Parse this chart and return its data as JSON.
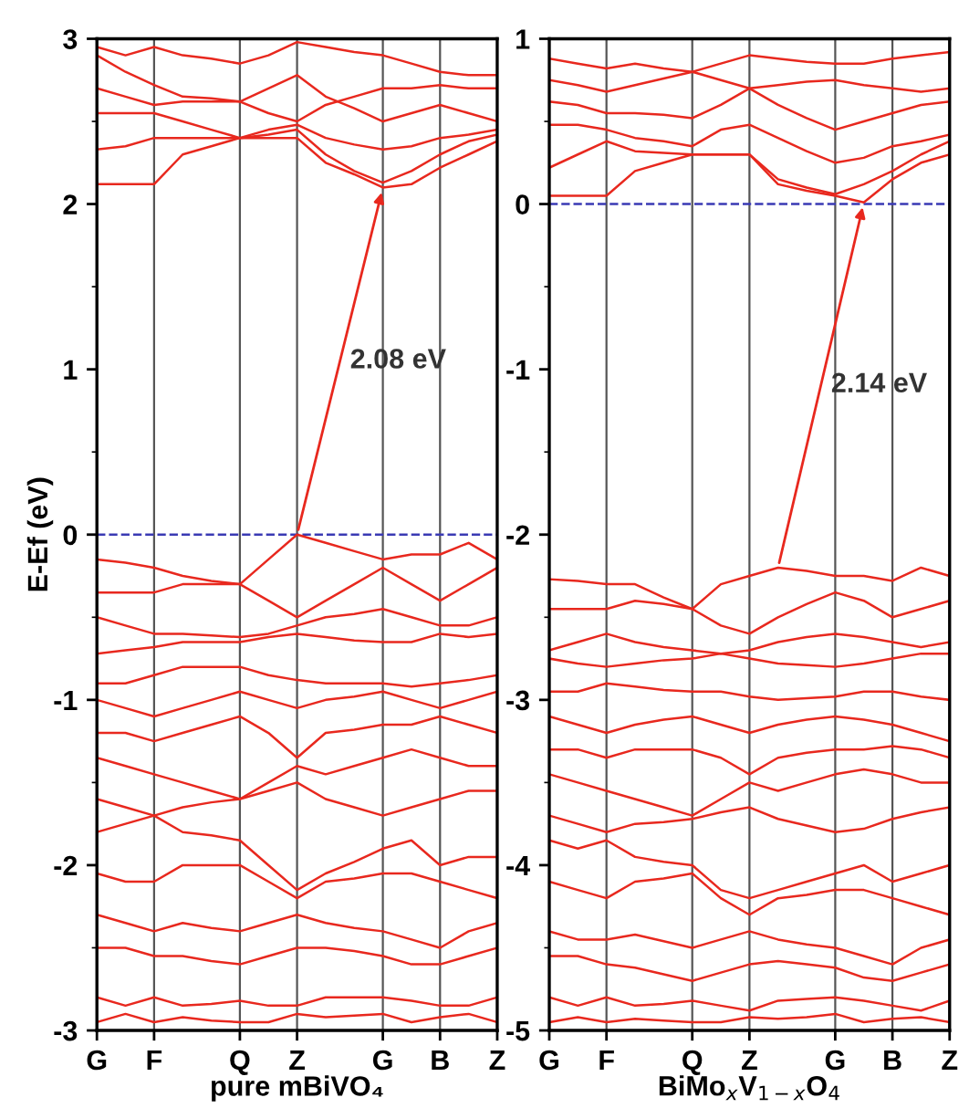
{
  "chart_data": [
    {
      "type": "line",
      "xlabel": "pure mBiVO₄",
      "ylabel": "E-Ef (eV)",
      "annotations": [
        "2.08 eV"
      ],
      "categories": [
        "G",
        null,
        "F",
        null,
        null,
        "Q",
        null,
        "Z",
        null,
        null,
        "G",
        null,
        "B",
        null,
        "Z"
      ],
      "ylim": [
        -3,
        3
      ],
      "yticks": [
        -3,
        -2,
        -1,
        0,
        1,
        2,
        3
      ],
      "grid": "x",
      "ref_lines": [
        {
          "axis": "y",
          "value": 0,
          "color": "#3a3ab4",
          "line_style": "dashed"
        }
      ],
      "series": [
        {
          "color": "#e8281e",
          "values": [
            2.12,
            2.12,
            2.12,
            2.3,
            2.35,
            2.4,
            2.4,
            2.4,
            2.25,
            2.18,
            2.1,
            2.12,
            2.22,
            2.3,
            2.38
          ]
        },
        {
          "color": "#e8281e",
          "values": [
            2.33,
            2.35,
            2.4,
            2.4,
            2.4,
            2.4,
            2.42,
            2.45,
            2.3,
            2.2,
            2.13,
            2.2,
            2.3,
            2.38,
            2.42
          ]
        },
        {
          "color": "#e8281e",
          "values": [
            2.55,
            2.55,
            2.55,
            2.5,
            2.45,
            2.4,
            2.45,
            2.48,
            2.4,
            2.36,
            2.33,
            2.35,
            2.4,
            2.42,
            2.45
          ]
        },
        {
          "color": "#e8281e",
          "values": [
            2.7,
            2.65,
            2.6,
            2.62,
            2.62,
            2.62,
            2.7,
            2.78,
            2.65,
            2.58,
            2.5,
            2.55,
            2.6,
            2.55,
            2.5
          ]
        },
        {
          "color": "#e8281e",
          "values": [
            2.9,
            2.8,
            2.72,
            2.65,
            2.64,
            2.62,
            2.55,
            2.5,
            2.6,
            2.65,
            2.7,
            2.7,
            2.72,
            2.7,
            2.7
          ]
        },
        {
          "color": "#e8281e",
          "values": [
            2.95,
            2.9,
            2.95,
            2.9,
            2.88,
            2.85,
            2.9,
            2.98,
            2.95,
            2.92,
            2.9,
            2.85,
            2.8,
            2.78,
            2.78
          ]
        },
        {
          "color": "#e8281e",
          "values": [
            -0.15,
            -0.17,
            -0.2,
            -0.25,
            -0.28,
            -0.3,
            -0.15,
            0,
            -0.05,
            -0.1,
            -0.15,
            -0.12,
            -0.12,
            -0.05,
            -0.15
          ]
        },
        {
          "color": "#e8281e",
          "values": [
            -0.35,
            -0.35,
            -0.35,
            -0.3,
            -0.3,
            -0.3,
            -0.4,
            -0.5,
            -0.4,
            -0.3,
            -0.2,
            -0.3,
            -0.4,
            -0.3,
            -0.2
          ]
        },
        {
          "color": "#e8281e",
          "values": [
            -0.5,
            -0.55,
            -0.6,
            -0.6,
            -0.61,
            -0.62,
            -0.6,
            -0.55,
            -0.5,
            -0.48,
            -0.45,
            -0.5,
            -0.55,
            -0.55,
            -0.5
          ]
        },
        {
          "color": "#e8281e",
          "values": [
            -0.72,
            -0.7,
            -0.68,
            -0.65,
            -0.65,
            -0.65,
            -0.62,
            -0.6,
            -0.62,
            -0.64,
            -0.65,
            -0.65,
            -0.6,
            -0.62,
            -0.6
          ]
        },
        {
          "color": "#e8281e",
          "values": [
            -0.9,
            -0.9,
            -0.85,
            -0.8,
            -0.8,
            -0.8,
            -0.85,
            -0.88,
            -0.9,
            -0.9,
            -0.9,
            -0.92,
            -0.9,
            -0.88,
            -0.85
          ]
        },
        {
          "color": "#e8281e",
          "values": [
            -1.0,
            -1.05,
            -1.1,
            -1.05,
            -1.0,
            -0.95,
            -1.0,
            -1.05,
            -1.0,
            -0.98,
            -0.95,
            -1.0,
            -1.05,
            -1.0,
            -0.95
          ]
        },
        {
          "color": "#e8281e",
          "values": [
            -1.2,
            -1.2,
            -1.25,
            -1.2,
            -1.15,
            -1.1,
            -1.2,
            -1.35,
            -1.2,
            -1.18,
            -1.15,
            -1.15,
            -1.1,
            -1.15,
            -1.2
          ]
        },
        {
          "color": "#e8281e",
          "values": [
            -1.35,
            -1.4,
            -1.45,
            -1.5,
            -1.55,
            -1.6,
            -1.5,
            -1.4,
            -1.45,
            -1.4,
            -1.35,
            -1.3,
            -1.35,
            -1.4,
            -1.4
          ]
        },
        {
          "color": "#e8281e",
          "values": [
            -1.6,
            -1.65,
            -1.7,
            -1.65,
            -1.62,
            -1.6,
            -1.55,
            -1.5,
            -1.6,
            -1.65,
            -1.7,
            -1.65,
            -1.6,
            -1.55,
            -1.55
          ]
        },
        {
          "color": "#e8281e",
          "values": [
            -1.8,
            -1.75,
            -1.7,
            -1.8,
            -1.82,
            -1.85,
            -2.0,
            -2.15,
            -2.05,
            -1.98,
            -1.9,
            -1.85,
            -2.0,
            -1.95,
            -1.95
          ]
        },
        {
          "color": "#e8281e",
          "values": [
            -2.05,
            -2.1,
            -2.1,
            -2.0,
            -2.0,
            -2.0,
            -2.1,
            -2.2,
            -2.1,
            -2.08,
            -2.05,
            -2.05,
            -2.1,
            -2.15,
            -2.2
          ]
        },
        {
          "color": "#e8281e",
          "values": [
            -2.3,
            -2.35,
            -2.4,
            -2.35,
            -2.38,
            -2.4,
            -2.35,
            -2.3,
            -2.35,
            -2.38,
            -2.4,
            -2.45,
            -2.5,
            -2.4,
            -2.35
          ]
        },
        {
          "color": "#e8281e",
          "values": [
            -2.5,
            -2.5,
            -2.55,
            -2.55,
            -2.58,
            -2.6,
            -2.55,
            -2.5,
            -2.5,
            -2.52,
            -2.55,
            -2.6,
            -2.6,
            -2.55,
            -2.5
          ]
        },
        {
          "color": "#e8281e",
          "values": [
            -2.8,
            -2.85,
            -2.8,
            -2.85,
            -2.84,
            -2.82,
            -2.85,
            -2.85,
            -2.8,
            -2.8,
            -2.8,
            -2.82,
            -2.85,
            -2.85,
            -2.8
          ]
        },
        {
          "color": "#e8281e",
          "values": [
            -2.95,
            -2.9,
            -2.95,
            -2.92,
            -2.94,
            -2.95,
            -2.95,
            -2.9,
            -2.92,
            -2.91,
            -2.9,
            -2.95,
            -2.92,
            -2.9,
            -2.95
          ]
        }
      ]
    },
    {
      "type": "line",
      "xlabel": "BiMo$_{x}$V$_{1−x}$O$_{4}$",
      "annotations": [
        "2.14 eV"
      ],
      "categories": [
        "G",
        null,
        "F",
        null,
        null,
        "Q",
        null,
        "Z",
        null,
        null,
        "G",
        null,
        "B",
        null,
        "Z"
      ],
      "ylim": [
        -5,
        1
      ],
      "yticks": [
        -5,
        -4,
        -3,
        -2,
        -1,
        0,
        1
      ],
      "grid": "x",
      "ref_lines": [
        {
          "axis": "y",
          "value": 0,
          "color": "#3a3ab4",
          "line_style": "dashed"
        }
      ],
      "series": [
        {
          "color": "#e8281e",
          "values": [
            0.05,
            0.05,
            0.05,
            0.2,
            0.25,
            0.3,
            0.3,
            0.3,
            0.12,
            0.08,
            0.05,
            0.01,
            0.15,
            0.25,
            0.3
          ]
        },
        {
          "color": "#e8281e",
          "values": [
            0.22,
            0.3,
            0.38,
            0.32,
            0.31,
            0.3,
            0.3,
            0.3,
            0.15,
            0.1,
            0.06,
            0.12,
            0.2,
            0.3,
            0.38
          ]
        },
        {
          "color": "#e8281e",
          "values": [
            0.48,
            0.48,
            0.45,
            0.4,
            0.38,
            0.35,
            0.45,
            0.48,
            0.4,
            0.32,
            0.25,
            0.28,
            0.35,
            0.38,
            0.42
          ]
        },
        {
          "color": "#e8281e",
          "values": [
            0.62,
            0.6,
            0.55,
            0.55,
            0.54,
            0.52,
            0.6,
            0.7,
            0.6,
            0.52,
            0.45,
            0.5,
            0.55,
            0.6,
            0.62
          ]
        },
        {
          "color": "#e8281e",
          "values": [
            0.75,
            0.72,
            0.68,
            0.72,
            0.76,
            0.8,
            0.75,
            0.7,
            0.72,
            0.74,
            0.75,
            0.72,
            0.7,
            0.68,
            0.7
          ]
        },
        {
          "color": "#e8281e",
          "values": [
            0.88,
            0.85,
            0.82,
            0.85,
            0.82,
            0.8,
            0.85,
            0.9,
            0.88,
            0.86,
            0.85,
            0.85,
            0.88,
            0.9,
            0.92
          ]
        },
        {
          "color": "#e8281e",
          "values": [
            -2.27,
            -2.28,
            -2.3,
            -2.3,
            -2.38,
            -2.45,
            -2.3,
            -2.25,
            -2.2,
            -2.22,
            -2.25,
            -2.25,
            -2.28,
            -2.2,
            -2.25
          ]
        },
        {
          "color": "#e8281e",
          "values": [
            -2.45,
            -2.45,
            -2.45,
            -2.4,
            -2.42,
            -2.45,
            -2.55,
            -2.6,
            -2.5,
            -2.42,
            -2.35,
            -2.4,
            -2.5,
            -2.45,
            -2.4
          ]
        },
        {
          "color": "#e8281e",
          "values": [
            -2.7,
            -2.65,
            -2.6,
            -2.65,
            -2.68,
            -2.7,
            -2.72,
            -2.7,
            -2.65,
            -2.62,
            -2.6,
            -2.62,
            -2.65,
            -2.68,
            -2.65
          ]
        },
        {
          "color": "#e8281e",
          "values": [
            -2.75,
            -2.78,
            -2.8,
            -2.78,
            -2.76,
            -2.75,
            -2.72,
            -2.75,
            -2.78,
            -2.79,
            -2.8,
            -2.78,
            -2.75,
            -2.72,
            -2.72
          ]
        },
        {
          "color": "#e8281e",
          "values": [
            -2.95,
            -2.95,
            -2.9,
            -2.92,
            -2.94,
            -2.95,
            -2.95,
            -2.98,
            -3.0,
            -2.99,
            -2.98,
            -2.95,
            -2.95,
            -2.98,
            -3.0
          ]
        },
        {
          "color": "#e8281e",
          "values": [
            -3.1,
            -3.15,
            -3.2,
            -3.15,
            -3.12,
            -3.1,
            -3.15,
            -3.2,
            -3.15,
            -3.12,
            -3.1,
            -3.12,
            -3.15,
            -3.2,
            -3.25
          ]
        },
        {
          "color": "#e8281e",
          "values": [
            -3.3,
            -3.3,
            -3.35,
            -3.3,
            -3.3,
            -3.3,
            -3.35,
            -3.45,
            -3.35,
            -3.32,
            -3.3,
            -3.3,
            -3.28,
            -3.3,
            -3.35
          ]
        },
        {
          "color": "#e8281e",
          "values": [
            -3.45,
            -3.5,
            -3.55,
            -3.6,
            -3.65,
            -3.7,
            -3.6,
            -3.5,
            -3.55,
            -3.5,
            -3.45,
            -3.42,
            -3.45,
            -3.5,
            -3.5
          ]
        },
        {
          "color": "#e8281e",
          "values": [
            -3.7,
            -3.75,
            -3.8,
            -3.75,
            -3.74,
            -3.72,
            -3.68,
            -3.65,
            -3.72,
            -3.76,
            -3.8,
            -3.78,
            -3.72,
            -3.68,
            -3.65
          ]
        },
        {
          "color": "#e8281e",
          "values": [
            -3.85,
            -3.9,
            -3.85,
            -3.95,
            -3.98,
            -4.0,
            -4.15,
            -4.2,
            -4.15,
            -4.1,
            -4.05,
            -4.0,
            -4.1,
            -4.05,
            -4.0
          ]
        },
        {
          "color": "#e8281e",
          "values": [
            -4.1,
            -4.15,
            -4.2,
            -4.1,
            -4.08,
            -4.05,
            -4.2,
            -4.3,
            -4.2,
            -4.18,
            -4.15,
            -4.15,
            -4.2,
            -4.25,
            -4.3
          ]
        },
        {
          "color": "#e8281e",
          "values": [
            -4.4,
            -4.45,
            -4.45,
            -4.42,
            -4.46,
            -4.5,
            -4.45,
            -4.4,
            -4.45,
            -4.48,
            -4.5,
            -4.55,
            -4.6,
            -4.5,
            -4.45
          ]
        },
        {
          "color": "#e8281e",
          "values": [
            -4.55,
            -4.55,
            -4.6,
            -4.62,
            -4.66,
            -4.7,
            -4.65,
            -4.6,
            -4.58,
            -4.6,
            -4.62,
            -4.68,
            -4.7,
            -4.65,
            -4.6
          ]
        },
        {
          "color": "#e8281e",
          "values": [
            -4.8,
            -4.85,
            -4.8,
            -4.85,
            -4.84,
            -4.82,
            -4.85,
            -4.88,
            -4.82,
            -4.81,
            -4.8,
            -4.82,
            -4.85,
            -4.88,
            -4.82
          ]
        },
        {
          "color": "#e8281e",
          "values": [
            -4.95,
            -4.92,
            -4.95,
            -4.93,
            -4.94,
            -4.95,
            -4.95,
            -4.92,
            -4.93,
            -4.92,
            -4.9,
            -4.95,
            -4.93,
            -4.92,
            -4.95
          ]
        }
      ]
    }
  ]
}
